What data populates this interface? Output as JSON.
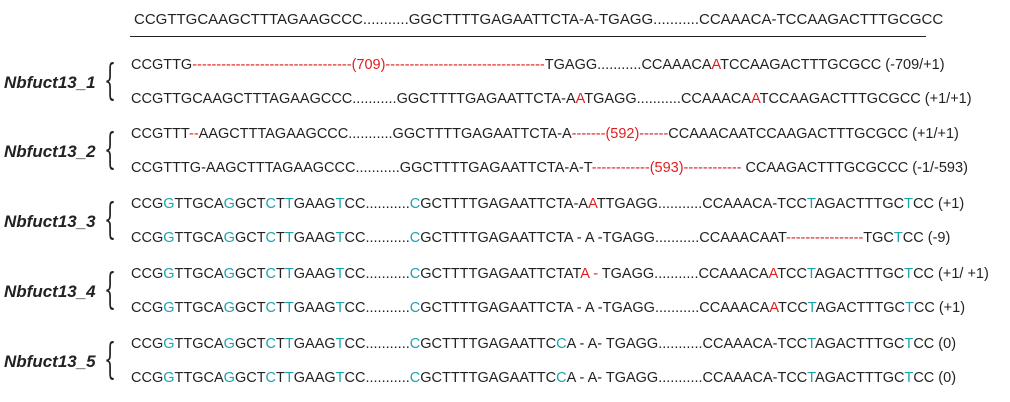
{
  "reference": "CCGTTGCAAGCTTTAGAAGCCC...........GGCTTTTGAGAATTCTA-A-TGAGG...........CCAAACA-TCCAAGACTTTGCGCC",
  "groups": [
    {
      "label": "Nbfuct13_1",
      "rows": [
        [
          [
            "CCGTTG",
            ""
          ],
          [
            "---------------------------------(709)---------------------------------",
            "r"
          ],
          [
            "TGAGG...........CCAAACA",
            ""
          ],
          [
            "A",
            "r"
          ],
          [
            "TCCAAGACTTTGCGCC  (-709/+1)",
            ""
          ]
        ],
        [
          [
            "CCGTTGCAAGCTTTAGAAGCCC...........GGCTTTTGAGAATTCTA-A",
            ""
          ],
          [
            "A",
            "r"
          ],
          [
            "TGAGG...........CCAAACA",
            ""
          ],
          [
            "A",
            "r"
          ],
          [
            "TCCAAGACTTTGCGCC  (+1/+1)",
            ""
          ]
        ]
      ]
    },
    {
      "label": "Nbfuct13_2",
      "rows": [
        [
          [
            "CCGTTT",
            ""
          ],
          [
            "--",
            "r"
          ],
          [
            "AAGCTTTAGAAGCCC...........GGCTTTTGAGAATTCTA-A",
            ""
          ],
          [
            "-------(592)------",
            "r"
          ],
          [
            "CCAAACAATCCAAGACTTTGCGCC  (+1/+1)",
            ""
          ]
        ],
        [
          [
            "CCGTTTG-AAGCTTTAGAAGCCC...........GGCTTTTGAGAATTCTA-A-T",
            ""
          ],
          [
            "------------(593)------------",
            "r"
          ],
          [
            " CCAAGACTTTGCGCCC  (-1/-593)",
            ""
          ]
        ]
      ]
    },
    {
      "label": "Nbfuct13_3",
      "rows": [
        [
          [
            "CCG",
            ""
          ],
          [
            "G",
            "c"
          ],
          [
            "TTGCA",
            ""
          ],
          [
            "G",
            "c"
          ],
          [
            "GCT",
            ""
          ],
          [
            "C",
            "c"
          ],
          [
            "T",
            ""
          ],
          [
            "T",
            "c"
          ],
          [
            "GAAG",
            ""
          ],
          [
            "T",
            "c"
          ],
          [
            "CC...........",
            ""
          ],
          [
            "C",
            "c"
          ],
          [
            "GCTTTTGAGAATTCTA-A",
            ""
          ],
          [
            "A",
            "r"
          ],
          [
            "TTGAGG...........CCAAACA-TCC",
            ""
          ],
          [
            "T",
            "c"
          ],
          [
            "AGACTTTGC",
            ""
          ],
          [
            "T",
            "c"
          ],
          [
            "CC  (+1)",
            ""
          ]
        ],
        [
          [
            "CCG",
            ""
          ],
          [
            "G",
            "c"
          ],
          [
            "TTGCA",
            ""
          ],
          [
            "G",
            "c"
          ],
          [
            "GCT",
            ""
          ],
          [
            "C",
            "c"
          ],
          [
            "T",
            ""
          ],
          [
            "T",
            "c"
          ],
          [
            "GAAG",
            ""
          ],
          [
            "T",
            "c"
          ],
          [
            "CC...........",
            ""
          ],
          [
            "C",
            "c"
          ],
          [
            "GCTTTTGAGAATTCTA - A -TGAGG...........CCAAACAAT",
            ""
          ],
          [
            "----------------",
            "r"
          ],
          [
            "TGC",
            ""
          ],
          [
            "T",
            "c"
          ],
          [
            "CC  (-9)",
            ""
          ]
        ]
      ]
    },
    {
      "label": "Nbfuct13_4",
      "rows": [
        [
          [
            "CCG",
            ""
          ],
          [
            "G",
            "c"
          ],
          [
            "TTGCA",
            ""
          ],
          [
            "G",
            "c"
          ],
          [
            "GCT",
            ""
          ],
          [
            "C",
            "c"
          ],
          [
            "T",
            ""
          ],
          [
            "T",
            "c"
          ],
          [
            "GAAG",
            ""
          ],
          [
            "T",
            "c"
          ],
          [
            "CC...........",
            ""
          ],
          [
            "C",
            "c"
          ],
          [
            "GCTTTTGAGAATTCTAT",
            ""
          ],
          [
            "A -",
            "r"
          ],
          [
            " TGAGG...........CCAAACA",
            ""
          ],
          [
            "A",
            "r"
          ],
          [
            "TCC",
            ""
          ],
          [
            "T",
            "c"
          ],
          [
            "AGACTTTGC",
            ""
          ],
          [
            "T",
            "c"
          ],
          [
            "CC  (+1/ +1)",
            ""
          ]
        ],
        [
          [
            "CCG",
            ""
          ],
          [
            "G",
            "c"
          ],
          [
            "TTGCA",
            ""
          ],
          [
            "G",
            "c"
          ],
          [
            "GCT",
            ""
          ],
          [
            "C",
            "c"
          ],
          [
            "T",
            ""
          ],
          [
            "T",
            "c"
          ],
          [
            "GAAG",
            ""
          ],
          [
            "T",
            "c"
          ],
          [
            "CC...........",
            ""
          ],
          [
            "C",
            "c"
          ],
          [
            "GCTTTTGAGAATTCTA - A -TGAGG...........CCAAACA",
            ""
          ],
          [
            "A",
            "r"
          ],
          [
            "TCC",
            ""
          ],
          [
            "T",
            "c"
          ],
          [
            "AGACTTTGC",
            ""
          ],
          [
            "T",
            "c"
          ],
          [
            "CC  (+1)",
            ""
          ]
        ]
      ]
    },
    {
      "label": "Nbfuct13_5",
      "rows": [
        [
          [
            "CCG",
            ""
          ],
          [
            "G",
            "c"
          ],
          [
            "TTGCA",
            ""
          ],
          [
            "G",
            "c"
          ],
          [
            "GCT",
            ""
          ],
          [
            "C",
            "c"
          ],
          [
            "T",
            ""
          ],
          [
            "T",
            "c"
          ],
          [
            "GAAG",
            ""
          ],
          [
            "T",
            "c"
          ],
          [
            "CC...........",
            ""
          ],
          [
            "C",
            "c"
          ],
          [
            "GCTTTTGAGAATTC",
            ""
          ],
          [
            "C",
            "c"
          ],
          [
            "A - A- TGAGG...........CCAAACA-TCC",
            ""
          ],
          [
            "T",
            "c"
          ],
          [
            "AGACTTTGC",
            ""
          ],
          [
            "T",
            "c"
          ],
          [
            "CC  (0)",
            ""
          ]
        ],
        [
          [
            "CCG",
            ""
          ],
          [
            "G",
            "c"
          ],
          [
            "TTGCA",
            ""
          ],
          [
            "G",
            "c"
          ],
          [
            "GCT",
            ""
          ],
          [
            "C",
            "c"
          ],
          [
            "T",
            ""
          ],
          [
            "T",
            "c"
          ],
          [
            "GAAG",
            ""
          ],
          [
            "T",
            "c"
          ],
          [
            "CC...........",
            ""
          ],
          [
            "C",
            "c"
          ],
          [
            "GCTTTTGAGAATTC",
            ""
          ],
          [
            "C",
            "c"
          ],
          [
            "A - A- TGAGG...........CCAAACA-TCC",
            ""
          ],
          [
            "T",
            "c"
          ],
          [
            "AGACTTTGC",
            ""
          ],
          [
            "T",
            "c"
          ],
          [
            "CC  (0)",
            ""
          ]
        ]
      ]
    }
  ]
}
